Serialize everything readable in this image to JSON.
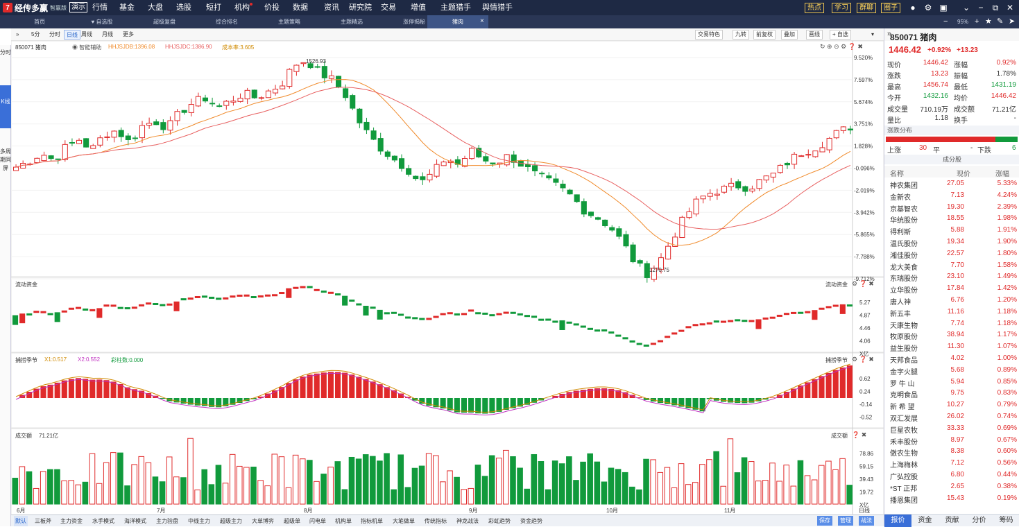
{
  "app": {
    "name": "经传多赢",
    "edition": "智赢版",
    "demo": "演示"
  },
  "menu": {
    "items": [
      "行情",
      "基金",
      "大盘",
      "选股",
      "短打",
      "机构",
      "价投",
      "数据",
      "资讯",
      "研究院",
      "交易",
      "增值",
      "主题猎手",
      "舆情猎手"
    ],
    "dot_item": "机构",
    "right_buttons": [
      "热点",
      "学习",
      "群聊",
      "圈子"
    ]
  },
  "tabs": {
    "items": [
      "首页",
      "♥ 自选股",
      "超级复盘",
      "综合排名",
      "主题策略",
      "主题精选",
      "涨停揭秘",
      "猪肉"
    ],
    "active": "猪肉",
    "zoom": "95%"
  },
  "left_strip": {
    "items": [
      "分时",
      "K线",
      "多周期同屏"
    ]
  },
  "toolbar": {
    "left": [
      "5分",
      "分时",
      "日线",
      "周线",
      "月线",
      "更多"
    ],
    "active": "日线",
    "right": [
      "交易特色",
      "九转",
      "前复权",
      "叠加",
      "画线",
      "+ 自选"
    ]
  },
  "chart_header": {
    "code_name": "850071 猪肉",
    "assist": "智能辅助",
    "hhjsjdb": "HHJSJDB:1396.08",
    "hhjsjdc": "HHJSJDC:1386.90",
    "rate": "成本率:3.605"
  },
  "panels": {
    "flow_title": "流动资金",
    "season_title": "捕捞季节",
    "season_x1": "X1:0.517",
    "season_x2": "X2:0.552",
    "season_bar": "彩柱数:0.000",
    "vol_title": "成交额",
    "vol_value": "71.21亿"
  },
  "price_axis": [
    "9.520%",
    "7.597%",
    "5.674%",
    "3.751%",
    "1.828%",
    "-0.096%",
    "-2.019%",
    "-3.942%",
    "-5.865%",
    "-7.788%",
    "-9.712%"
  ],
  "flow_axis": [
    "5.27",
    "4.87",
    "4.46",
    "4.06",
    "X亿"
  ],
  "season_axis": [
    "0.62",
    "0.24",
    "-0.14",
    "-0.52"
  ],
  "vol_axis": [
    "78.86",
    "59.15",
    "39.43",
    "19.72",
    "X亿"
  ],
  "x_months": [
    "6月",
    "7月",
    "8月",
    "9月",
    "10月",
    "11月",
    "日线"
  ],
  "high_label": "1526.93",
  "low_label": "1270.75",
  "bottom_tabs": {
    "items": [
      "默认",
      "三板斧",
      "主力资金",
      "水手模式",
      "海洋模式",
      "主力验盘",
      "中线主力",
      "超级主力",
      "大单博弈",
      "超级单",
      "闪电单",
      "机构单",
      "指标机单",
      "大笔做单",
      "传统指标",
      "神龙战法",
      "彩虹趋势",
      "资金趋势"
    ],
    "active": "默认",
    "right": [
      "保存",
      "管理",
      "战法"
    ]
  },
  "quote": {
    "code": "850071 猪肉",
    "price": "1446.42",
    "pct": "+0.92%",
    "chg": "+13.23",
    "rows": [
      [
        "现价",
        "1446.42",
        "r",
        "涨幅",
        "0.92%",
        "r"
      ],
      [
        "涨跌",
        "13.23",
        "r",
        "振幅",
        "1.78%",
        ""
      ],
      [
        "最高",
        "1456.74",
        "r",
        "最低",
        "1431.19",
        "g"
      ],
      [
        "今开",
        "1432.16",
        "g",
        "均价",
        "1446.42",
        "r"
      ],
      [
        "成交量",
        "710.19万",
        "",
        "成交额",
        "71.21亿",
        ""
      ],
      [
        "量比",
        "1.18",
        "",
        "换手",
        "-",
        ""
      ]
    ],
    "dist_title": "涨跌分布",
    "up_label": "上涨",
    "up": "30",
    "flat_label": "平",
    "flat": "-",
    "down_label": "下跌",
    "down": "6"
  },
  "constituents": {
    "title": "成分股",
    "headers": [
      "名称",
      "现价",
      "涨幅"
    ],
    "rows": [
      [
        "神农集团",
        "27.05",
        "5.33%"
      ],
      [
        "金新农",
        "7.13",
        "4.24%"
      ],
      [
        "京基智农",
        "19.30",
        "2.39%"
      ],
      [
        "华统股份",
        "18.55",
        "1.98%"
      ],
      [
        "得利斯",
        "5.88",
        "1.91%"
      ],
      [
        "温氏股份",
        "19.34",
        "1.90%"
      ],
      [
        "湘佳股份",
        "22.57",
        "1.80%"
      ],
      [
        "龙大美食",
        "7.70",
        "1.58%"
      ],
      [
        "东瑞股份",
        "23.10",
        "1.49%"
      ],
      [
        "立华股份",
        "17.84",
        "1.42%"
      ],
      [
        "唐人神",
        "6.76",
        "1.20%"
      ],
      [
        "新五丰",
        "11.16",
        "1.18%"
      ],
      [
        "天康生物",
        "7.74",
        "1.18%"
      ],
      [
        "牧原股份",
        "38.94",
        "1.17%"
      ],
      [
        "益生股份",
        "11.30",
        "1.07%"
      ],
      [
        "天邦食品",
        "4.02",
        "1.00%"
      ],
      [
        "金字火腿",
        "5.68",
        "0.89%"
      ],
      [
        "罗 牛 山",
        "5.94",
        "0.85%"
      ],
      [
        "克明食品",
        "9.75",
        "0.83%"
      ],
      [
        "新 希 望",
        "10.27",
        "0.79%"
      ],
      [
        "双汇发展",
        "26.02",
        "0.74%"
      ],
      [
        "巨星农牧",
        "33.33",
        "0.69%"
      ],
      [
        "禾丰股份",
        "8.97",
        "0.67%"
      ],
      [
        "傲农生物",
        "8.38",
        "0.60%"
      ],
      [
        "上海梅林",
        "7.12",
        "0.56%"
      ],
      [
        "广弘控股",
        "6.80",
        "0.44%"
      ],
      [
        "*ST 正邦",
        "2.65",
        "0.38%"
      ],
      [
        "播恩集团",
        "15.43",
        "0.19%"
      ]
    ]
  },
  "right_tabs": {
    "items": [
      "报价",
      "资金",
      "贡献",
      "分价",
      "筹码"
    ],
    "active": "报价"
  },
  "colors": {
    "up": "#e02a2a",
    "down": "#119a3c",
    "ma1": "#f08a2a",
    "ma2": "#e86060",
    "bg_top": "#1e2944"
  }
}
